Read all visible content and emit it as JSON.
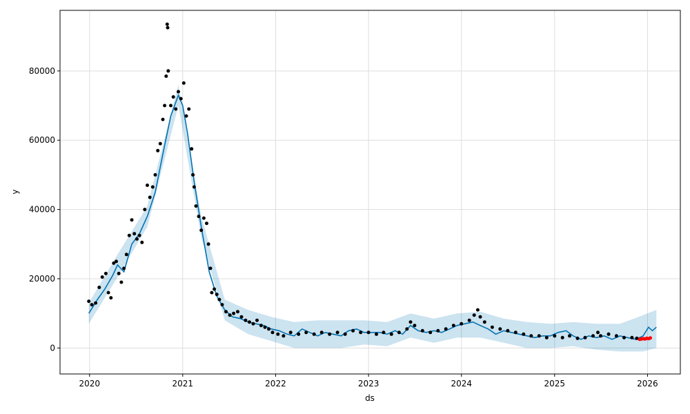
{
  "chart_data": {
    "type": "scatter",
    "title": "",
    "xlabel": "ds",
    "ylabel": "y",
    "xlim": [
      "2019-09-07",
      "2026-05-10"
    ],
    "ylim": [
      -7500,
      97500
    ],
    "x_ticks": [
      "2020",
      "2021",
      "2022",
      "2023",
      "2024",
      "2025",
      "2026"
    ],
    "y_ticks": [
      0,
      20000,
      40000,
      60000,
      80000
    ],
    "y_tick_labels": [
      "0",
      "20000",
      "40000",
      "60000",
      "80000"
    ],
    "grid": true,
    "colors": {
      "observed": "#000000",
      "forecast_line": "#0072B2",
      "uncertainty_band": "#0072B2",
      "actual_future": "#ff0000"
    },
    "series": [
      {
        "role": "observed",
        "points": [
          [
            "2019-12-29",
            13500
          ],
          [
            "2020-01-10",
            12500
          ],
          [
            "2020-01-25",
            13000
          ],
          [
            "2020-02-08",
            17500
          ],
          [
            "2020-02-20",
            20500
          ],
          [
            "2020-03-05",
            21500
          ],
          [
            "2020-03-15",
            16000
          ],
          [
            "2020-03-25",
            14500
          ],
          [
            "2020-04-05",
            24500
          ],
          [
            "2020-04-15",
            25000
          ],
          [
            "2020-04-25",
            21500
          ],
          [
            "2020-05-05",
            19000
          ],
          [
            "2020-05-15",
            23000
          ],
          [
            "2020-05-25",
            27000
          ],
          [
            "2020-06-05",
            32500
          ],
          [
            "2020-06-15",
            37000
          ],
          [
            "2020-06-25",
            33000
          ],
          [
            "2020-07-05",
            31500
          ],
          [
            "2020-07-15",
            32500
          ],
          [
            "2020-07-25",
            30500
          ],
          [
            "2020-08-05",
            40000
          ],
          [
            "2020-08-15",
            47000
          ],
          [
            "2020-08-25",
            43500
          ],
          [
            "2020-09-05",
            46500
          ],
          [
            "2020-09-15",
            50000
          ],
          [
            "2020-09-25",
            57000
          ],
          [
            "2020-10-05",
            59000
          ],
          [
            "2020-10-15",
            66000
          ],
          [
            "2020-10-22",
            70000
          ],
          [
            "2020-10-28",
            78500
          ],
          [
            "2020-11-01",
            93500
          ],
          [
            "2020-11-03",
            92500
          ],
          [
            "2020-11-05",
            80000
          ],
          [
            "2020-11-15",
            70000
          ],
          [
            "2020-11-25",
            72500
          ],
          [
            "2020-12-05",
            69000
          ],
          [
            "2020-12-15",
            74000
          ],
          [
            "2020-12-25",
            72000
          ],
          [
            "2021-01-05",
            76500
          ],
          [
            "2021-01-15",
            67000
          ],
          [
            "2021-01-25",
            69000
          ],
          [
            "2021-02-05",
            57500
          ],
          [
            "2021-02-10",
            50000
          ],
          [
            "2021-02-15",
            46500
          ],
          [
            "2021-02-22",
            41000
          ],
          [
            "2021-03-05",
            38000
          ],
          [
            "2021-03-15",
            34000
          ],
          [
            "2021-03-25",
            37500
          ],
          [
            "2021-04-05",
            36000
          ],
          [
            "2021-04-12",
            30000
          ],
          [
            "2021-04-20",
            23000
          ],
          [
            "2021-04-25",
            16000
          ],
          [
            "2021-05-05",
            17000
          ],
          [
            "2021-05-15",
            15500
          ],
          [
            "2021-05-25",
            14000
          ],
          [
            "2021-06-05",
            12500
          ],
          [
            "2021-06-20",
            10500
          ],
          [
            "2021-07-05",
            9500
          ],
          [
            "2021-07-20",
            10000
          ],
          [
            "2021-08-05",
            10500
          ],
          [
            "2021-08-20",
            9000
          ],
          [
            "2021-09-05",
            8000
          ],
          [
            "2021-09-20",
            7500
          ],
          [
            "2021-10-05",
            7000
          ],
          [
            "2021-10-20",
            8000
          ],
          [
            "2021-11-05",
            6500
          ],
          [
            "2021-11-20",
            6000
          ],
          [
            "2021-12-05",
            5500
          ],
          [
            "2021-12-20",
            4500
          ],
          [
            "2022-01-10",
            4000
          ],
          [
            "2022-02-01",
            3500
          ],
          [
            "2022-03-01",
            4500
          ],
          [
            "2022-04-01",
            4000
          ],
          [
            "2022-05-01",
            4500
          ],
          [
            "2022-06-01",
            4000
          ],
          [
            "2022-07-01",
            4500
          ],
          [
            "2022-08-01",
            4000
          ],
          [
            "2022-09-01",
            4500
          ],
          [
            "2022-10-01",
            4000
          ],
          [
            "2022-11-01",
            5000
          ],
          [
            "2022-12-01",
            4500
          ],
          [
            "2023-01-01",
            4500
          ],
          [
            "2023-02-01",
            4000
          ],
          [
            "2023-03-01",
            4500
          ],
          [
            "2023-04-01",
            4000
          ],
          [
            "2023-05-01",
            4500
          ],
          [
            "2023-06-01",
            5500
          ],
          [
            "2023-06-15",
            7500
          ],
          [
            "2023-07-01",
            6500
          ],
          [
            "2023-08-01",
            5000
          ],
          [
            "2023-09-01",
            4500
          ],
          [
            "2023-10-01",
            5000
          ],
          [
            "2023-11-01",
            5500
          ],
          [
            "2023-12-01",
            6500
          ],
          [
            "2024-01-01",
            7000
          ],
          [
            "2024-02-01",
            8000
          ],
          [
            "2024-02-20",
            9500
          ],
          [
            "2024-03-05",
            11000
          ],
          [
            "2024-03-15",
            9000
          ],
          [
            "2024-04-01",
            7500
          ],
          [
            "2024-05-01",
            6000
          ],
          [
            "2024-06-01",
            5500
          ],
          [
            "2024-07-01",
            5000
          ],
          [
            "2024-08-01",
            4500
          ],
          [
            "2024-09-01",
            4000
          ],
          [
            "2024-10-01",
            3500
          ],
          [
            "2024-11-01",
            3500
          ],
          [
            "2024-12-01",
            3000
          ],
          [
            "2025-01-01",
            3500
          ],
          [
            "2025-02-01",
            3000
          ],
          [
            "2025-03-01",
            3500
          ],
          [
            "2025-04-01",
            2800
          ],
          [
            "2025-05-01",
            3000
          ],
          [
            "2025-06-01",
            3500
          ],
          [
            "2025-06-20",
            4500
          ],
          [
            "2025-07-01",
            3500
          ],
          [
            "2025-08-01",
            4000
          ],
          [
            "2025-09-01",
            3500
          ],
          [
            "2025-10-01",
            3000
          ],
          [
            "2025-11-01",
            3000
          ],
          [
            "2025-11-20",
            2800
          ]
        ]
      },
      {
        "role": "actual_future",
        "points": [
          [
            "2025-12-01",
            2500
          ],
          [
            "2025-12-08",
            2600
          ],
          [
            "2025-12-15",
            2700
          ],
          [
            "2025-12-22",
            2600
          ],
          [
            "2025-12-29",
            2800
          ],
          [
            "2026-01-05",
            2700
          ],
          [
            "2026-01-12",
            2900
          ]
        ]
      },
      {
        "role": "forecast",
        "points": [
          [
            "2019-12-29",
            10000
          ],
          [
            "2020-02-01",
            14000
          ],
          [
            "2020-03-01",
            17000
          ],
          [
            "2020-04-01",
            21000
          ],
          [
            "2020-04-20",
            24000
          ],
          [
            "2020-05-15",
            22000
          ],
          [
            "2020-06-15",
            30000
          ],
          [
            "2020-07-15",
            33000
          ],
          [
            "2020-08-15",
            38000
          ],
          [
            "2020-09-15",
            45000
          ],
          [
            "2020-10-15",
            56000
          ],
          [
            "2020-11-15",
            67000
          ],
          [
            "2020-12-15",
            73000
          ],
          [
            "2021-01-01",
            70000
          ],
          [
            "2021-01-20",
            62000
          ],
          [
            "2021-02-15",
            48000
          ],
          [
            "2021-03-15",
            35000
          ],
          [
            "2021-04-15",
            22000
          ],
          [
            "2021-05-15",
            15000
          ],
          [
            "2021-06-15",
            11000
          ],
          [
            "2021-07-15",
            9000
          ],
          [
            "2021-08-15",
            8500
          ],
          [
            "2021-09-15",
            7500
          ],
          [
            "2021-10-15",
            7000
          ],
          [
            "2021-11-15",
            6500
          ],
          [
            "2021-12-15",
            5500
          ],
          [
            "2022-01-15",
            5000
          ],
          [
            "2022-02-15",
            4000
          ],
          [
            "2022-03-15",
            3500
          ],
          [
            "2022-04-15",
            5500
          ],
          [
            "2022-05-15",
            4500
          ],
          [
            "2022-06-15",
            3500
          ],
          [
            "2022-07-15",
            4500
          ],
          [
            "2022-08-15",
            4000
          ],
          [
            "2022-09-15",
            3500
          ],
          [
            "2022-10-15",
            5000
          ],
          [
            "2022-11-15",
            5500
          ],
          [
            "2022-12-15",
            4500
          ],
          [
            "2023-01-15",
            4500
          ],
          [
            "2023-02-15",
            4500
          ],
          [
            "2023-03-15",
            4000
          ],
          [
            "2023-04-15",
            5000
          ],
          [
            "2023-05-15",
            4000
          ],
          [
            "2023-06-15",
            6500
          ],
          [
            "2023-07-15",
            5000
          ],
          [
            "2023-08-15",
            4500
          ],
          [
            "2023-09-15",
            5000
          ],
          [
            "2023-10-15",
            4500
          ],
          [
            "2023-11-15",
            5500
          ],
          [
            "2023-12-15",
            6500
          ],
          [
            "2024-01-15",
            7000
          ],
          [
            "2024-02-15",
            7500
          ],
          [
            "2024-03-15",
            6500
          ],
          [
            "2024-04-15",
            5500
          ],
          [
            "2024-05-15",
            4000
          ],
          [
            "2024-06-15",
            5000
          ],
          [
            "2024-07-15",
            4500
          ],
          [
            "2024-08-15",
            4000
          ],
          [
            "2024-09-15",
            3500
          ],
          [
            "2024-10-15",
            3000
          ],
          [
            "2024-11-15",
            3500
          ],
          [
            "2024-12-15",
            3500
          ],
          [
            "2025-01-15",
            4500
          ],
          [
            "2025-02-15",
            5000
          ],
          [
            "2025-03-15",
            3500
          ],
          [
            "2025-04-15",
            2500
          ],
          [
            "2025-05-15",
            3500
          ],
          [
            "2025-06-15",
            3000
          ],
          [
            "2025-07-15",
            3500
          ],
          [
            "2025-08-15",
            2500
          ],
          [
            "2025-09-15",
            3500
          ],
          [
            "2025-10-15",
            3000
          ],
          [
            "2025-11-15",
            2500
          ],
          [
            "2025-12-15",
            3500
          ],
          [
            "2026-01-05",
            6000
          ],
          [
            "2026-01-20",
            5000
          ],
          [
            "2026-02-05",
            6000
          ]
        ]
      },
      {
        "role": "uncertainty_upper",
        "points": [
          [
            "2019-12-29",
            13000
          ],
          [
            "2020-04-20",
            27000
          ],
          [
            "2020-08-15",
            41000
          ],
          [
            "2020-12-15",
            76000
          ],
          [
            "2021-03-15",
            38000
          ],
          [
            "2021-06-15",
            14000
          ],
          [
            "2021-09-15",
            11000
          ],
          [
            "2021-12-15",
            9000
          ],
          [
            "2022-03-15",
            7500
          ],
          [
            "2022-06-15",
            8000
          ],
          [
            "2022-09-15",
            8000
          ],
          [
            "2022-12-15",
            8000
          ],
          [
            "2023-03-15",
            7500
          ],
          [
            "2023-06-15",
            10000
          ],
          [
            "2023-09-15",
            8500
          ],
          [
            "2023-12-15",
            10000
          ],
          [
            "2024-03-15",
            10500
          ],
          [
            "2024-06-15",
            8500
          ],
          [
            "2024-09-15",
            7500
          ],
          [
            "2024-12-15",
            7000
          ],
          [
            "2025-03-15",
            7500
          ],
          [
            "2025-06-15",
            7000
          ],
          [
            "2025-09-15",
            7000
          ],
          [
            "2025-12-15",
            9500
          ],
          [
            "2026-02-05",
            11000
          ]
        ]
      },
      {
        "role": "uncertainty_lower",
        "points": [
          [
            "2019-12-29",
            7000
          ],
          [
            "2020-04-20",
            20500
          ],
          [
            "2020-08-15",
            35000
          ],
          [
            "2020-12-15",
            70000
          ],
          [
            "2021-03-15",
            32000
          ],
          [
            "2021-06-15",
            8000
          ],
          [
            "2021-09-15",
            4000
          ],
          [
            "2021-12-15",
            2000
          ],
          [
            "2022-03-15",
            0
          ],
          [
            "2022-06-15",
            0
          ],
          [
            "2022-09-15",
            0
          ],
          [
            "2022-12-15",
            1000
          ],
          [
            "2023-03-15",
            500
          ],
          [
            "2023-06-15",
            3000
          ],
          [
            "2023-09-15",
            1500
          ],
          [
            "2023-12-15",
            3000
          ],
          [
            "2024-03-15",
            3000
          ],
          [
            "2024-06-15",
            1500
          ],
          [
            "2024-09-15",
            0
          ],
          [
            "2024-12-15",
            0
          ],
          [
            "2025-03-15",
            500
          ],
          [
            "2025-06-15",
            -500
          ],
          [
            "2025-09-15",
            -1000
          ],
          [
            "2025-12-15",
            -1000
          ],
          [
            "2026-02-05",
            0
          ]
        ]
      }
    ]
  }
}
